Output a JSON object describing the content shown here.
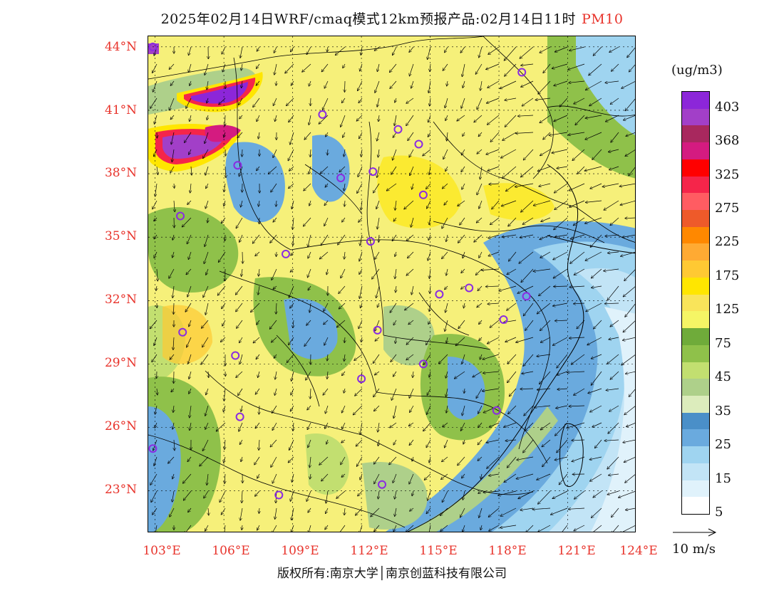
{
  "title": {
    "text": "2025年02月14日WRF/cmaq模式12km预报产品:02月14日11时",
    "pollutant": "PM10",
    "pollutant_color": "#e8332b"
  },
  "axes": {
    "latitude_labels": [
      "44°N",
      "41°N",
      "38°N",
      "35°N",
      "32°N",
      "29°N",
      "26°N",
      "23°N"
    ],
    "longitude_labels": [
      "103°E",
      "106°E",
      "109°E",
      "112°E",
      "115°E",
      "118°E",
      "121°E",
      "124°E"
    ],
    "label_color": "#e8332b",
    "lat_range": [
      21,
      44.5
    ],
    "lon_range": [
      102.7,
      124
    ]
  },
  "legend": {
    "unit": "(ug/m3)",
    "labels": [
      "403",
      "368",
      "325",
      "275",
      "225",
      "175",
      "125",
      "75",
      "45",
      "35",
      "25",
      "15",
      "5"
    ],
    "colors": [
      "#8c26d9",
      "#a23fc8",
      "#a8285e",
      "#d41b80",
      "#ff0000",
      "#f5254a",
      "#ff5c62",
      "#ee5a2a",
      "#ff8800",
      "#ffaa33",
      "#ffc933",
      "#ffe600",
      "#f9e45a",
      "#f5f565",
      "#6fab3a",
      "#8fc14a",
      "#c2df70",
      "#aed08a",
      "#dcecbc",
      "#4a8fc8",
      "#6aaade",
      "#9fd4f0",
      "#c2e4f6",
      "#e0f2fb",
      "#ffffff"
    ]
  },
  "wind_reference": {
    "label": "10 m/s"
  },
  "copyright": "版权所有:南京大学│南京创蓝科技有限公司",
  "stations": [
    {
      "lon": 102.9,
      "lat": 44.0
    },
    {
      "lon": 110.3,
      "lat": 40.8
    },
    {
      "lon": 113.6,
      "lat": 40.1
    },
    {
      "lon": 114.5,
      "lat": 39.4
    },
    {
      "lon": 106.6,
      "lat": 38.4
    },
    {
      "lon": 111.1,
      "lat": 37.8
    },
    {
      "lon": 112.5,
      "lat": 38.1
    },
    {
      "lon": 114.7,
      "lat": 37.0
    },
    {
      "lon": 104.1,
      "lat": 36.0
    },
    {
      "lon": 112.4,
      "lat": 34.8
    },
    {
      "lon": 108.7,
      "lat": 34.2
    },
    {
      "lon": 115.4,
      "lat": 32.3
    },
    {
      "lon": 116.7,
      "lat": 32.6
    },
    {
      "lon": 119.2,
      "lat": 32.2
    },
    {
      "lon": 118.2,
      "lat": 31.1
    },
    {
      "lon": 104.2,
      "lat": 30.5
    },
    {
      "lon": 112.7,
      "lat": 30.6
    },
    {
      "lon": 106.5,
      "lat": 29.4
    },
    {
      "lon": 114.7,
      "lat": 29.0
    },
    {
      "lon": 112.0,
      "lat": 28.3
    },
    {
      "lon": 106.7,
      "lat": 26.5
    },
    {
      "lon": 117.9,
      "lat": 26.8
    },
    {
      "lon": 102.9,
      "lat": 25.0
    },
    {
      "lon": 108.4,
      "lat": 22.8
    },
    {
      "lon": 112.9,
      "lat": 23.3
    },
    {
      "lon": 119.0,
      "lat": 42.8
    }
  ],
  "station_color": "#8a2be2"
}
